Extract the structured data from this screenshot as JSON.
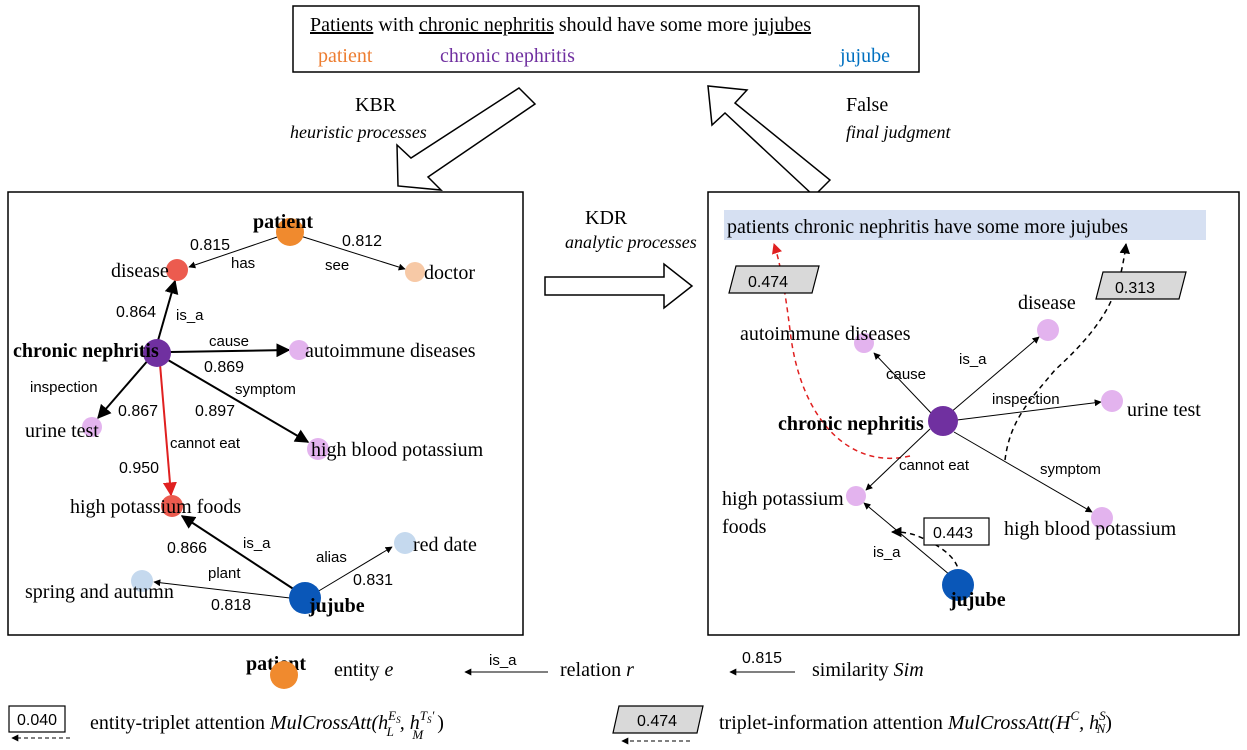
{
  "header": {
    "sentence": {
      "w1": "Patients",
      "w2": " with ",
      "w3": "chronic nephritis",
      "w4": " should have some more ",
      "w5": "jujubes"
    },
    "entities": {
      "patient": {
        "label": "patient",
        "color": "#ed7d31"
      },
      "chronic": {
        "label": "chronic nephritis",
        "color": "#7030a0"
      },
      "jujube": {
        "label": "jujube",
        "color": "#0070c0"
      }
    }
  },
  "arrows": {
    "kbr": {
      "title": "KBR",
      "subtitle": "heuristic processes"
    },
    "kdr": {
      "title": "KDR",
      "subtitle": "analytic processes"
    },
    "judgment": {
      "title": "False",
      "subtitle": "final judgment"
    }
  },
  "left_graph": {
    "nodes": {
      "patient": "patient",
      "disease": "disease",
      "doctor": "doctor",
      "chronic": "chronic nephritis",
      "autoimmune": "autoimmune diseases",
      "urine": "urine test",
      "hbp": "high blood potassium",
      "hpf": "high potassium foods",
      "reddate": "red date",
      "spring": "spring and autumn",
      "jujube": "jujube"
    },
    "relations": {
      "has": "has",
      "see": "see",
      "isa1": "is_a",
      "cause": "cause",
      "inspection": "inspection",
      "symptom": "symptom",
      "cannot_eat": "cannot eat",
      "isa2": "is_a",
      "alias": "alias",
      "plant": "plant"
    },
    "scores": {
      "has": "0.815",
      "see": "0.812",
      "isa1": "0.864",
      "cause": "0.869",
      "inspection": "0.867",
      "symptom": "0.897",
      "cannot_eat": "0.950",
      "isa2": "0.866",
      "alias": "0.831",
      "plant": "0.818"
    }
  },
  "right_graph": {
    "sentence": "patients chronic nephritis have some more jujubes",
    "nodes": {
      "autoimmune": "autoimmune diseases",
      "disease": "disease",
      "chronic": "chronic nephritis",
      "urine": "urine test",
      "hpf1": "high potassium",
      "hpf2": "foods",
      "hbp": "high blood potassium",
      "jujube": "jujube"
    },
    "relations": {
      "cause": "cause",
      "isa1": "is_a",
      "inspection": "inspection",
      "cannot_eat": "cannot eat",
      "symptom": "symptom",
      "isa2": "is_a"
    },
    "attention": {
      "a1": "0.474",
      "a2": "0.313",
      "a3": "0.443"
    }
  },
  "legend": {
    "entity_node": "patient",
    "entity_text": "entity ",
    "entity_var": "e",
    "relation_label": "is_a",
    "relation_text": "relation ",
    "relation_var": "r",
    "sim_value": "0.815",
    "sim_text": "similarity ",
    "sim_var": "Sim",
    "ent_att_value": "0.040",
    "ent_att_text": "entity-triplet attention ",
    "ent_att_formula": "MulCrossAtt(h",
    "ent_att_sub": "L",
    "ent_att_sup": "E",
    "ent_att_supsub": "S",
    "ent_att_mid": ", h",
    "ent_att_sub2": "M",
    "ent_att_sup2": "T",
    "ent_att_supsub2": "S",
    "ent_att_prime": "′",
    "ent_att_end": ")",
    "tri_att_value": "0.474",
    "tri_att_text": "triplet-information attention ",
    "tri_att_formula": "MulCrossAtt(H",
    "tri_att_sup": "C",
    "tri_att_mid": ", h",
    "tri_att_sub": "N",
    "tri_att_sup2": "S",
    "tri_att_end": ")"
  },
  "colors": {
    "patient": "#f08a2e",
    "disease_red": "#ec5b4f",
    "doctor": "#f7c9a6",
    "chronic": "#7030a0",
    "light_purple": "#e3b3ee",
    "light_blue": "#c5d9ee",
    "jujube": "#0a57b8",
    "red_edge": "#e02020",
    "highlight": "#d6e0f2",
    "gray_box": "#d9d9d9"
  }
}
